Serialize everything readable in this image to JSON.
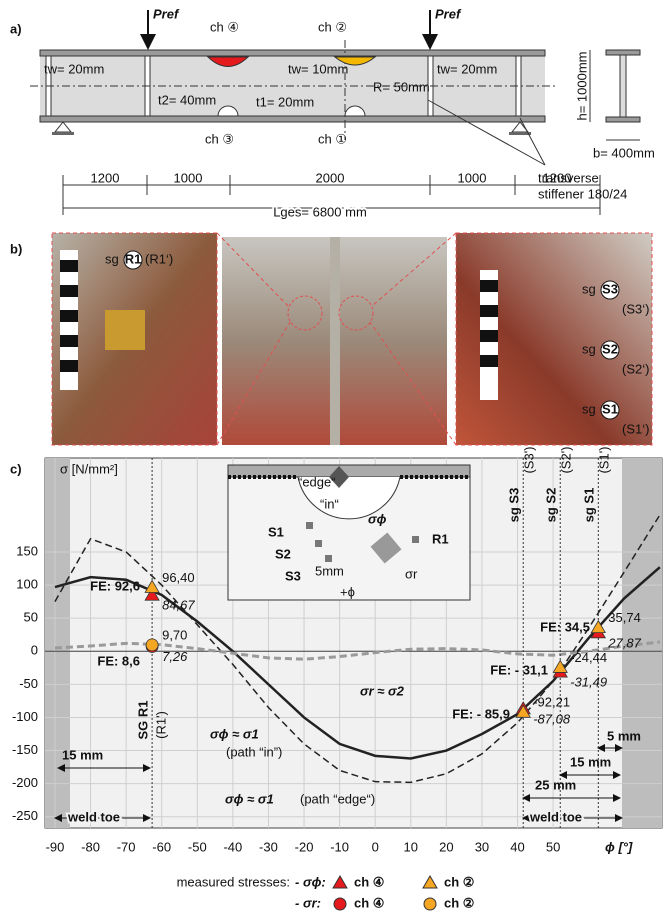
{
  "panel_a": {
    "label": "a)",
    "load_left": "Pref",
    "load_right": "Pref",
    "ch4": "ch ④",
    "ch2": "ch ②",
    "ch3": "ch ③",
    "ch1": "ch ①",
    "tw_left": "tw= 20mm",
    "tw_mid": "tw= 10mm",
    "tw_right": "tw= 20mm",
    "t2": "t2= 40mm",
    "t1": "t1= 20mm",
    "radius": "R= 50mm",
    "h": "h= 1000mm",
    "b": "b= 400mm",
    "spans": [
      "1200",
      "1000",
      "2000",
      "1000",
      "1200"
    ],
    "length": "Lges= 6800 mm",
    "stiffener": [
      "transverse",
      "stiffener 180/24"
    ]
  },
  "panel_b": {
    "label": "b)",
    "r1": {
      "sg": "sg",
      "id": "R1",
      "alt": "(R1‘)"
    },
    "s3": {
      "sg": "sg",
      "id": "S3",
      "alt": "(S3‘)"
    },
    "s2": {
      "sg": "sg",
      "id": "S2",
      "alt": "(S2‘)"
    },
    "s1": {
      "sg": "sg",
      "id": "S1",
      "alt": "(S1‘)"
    }
  },
  "chart_data": {
    "type": "line",
    "panel_label": "c)",
    "y_label": "σ [N/mm²]",
    "x_label": "ϕ [°]",
    "x": [
      -90,
      -80,
      -70,
      -60,
      -50,
      -40,
      -30,
      -20,
      -10,
      0,
      10,
      20,
      30,
      40,
      50,
      60,
      70,
      80
    ],
    "xlim": [
      -92.8,
      80.6
    ],
    "ylim": [
      -267,
      292
    ],
    "xticks": [
      -90,
      -80,
      -70,
      -60,
      -50,
      -40,
      -30,
      -20,
      -10,
      0,
      10,
      20,
      30,
      40,
      50
    ],
    "yticks": [
      -250,
      -200,
      -150,
      -100,
      -50,
      0,
      50,
      100,
      150
    ],
    "grid": true,
    "series": [
      {
        "color": "#222222",
        "dash": false,
        "width": 2.5,
        "values": [
          97,
          112,
          108,
          85,
          45,
          0,
          -50,
          -100,
          -140,
          -158,
          -162,
          -150,
          -125,
          -95,
          -45,
          20,
          80,
          127
        ]
      },
      {
        "color": "#222222",
        "dash": true,
        "width": 1.5,
        "values": [
          75,
          170,
          150,
          100,
          40,
          -20,
          -85,
          -140,
          -180,
          -197,
          -198,
          -185,
          -155,
          -108,
          -45,
          35,
          120,
          206
        ]
      },
      {
        "color": "#9a9a9a",
        "dash": true,
        "width": 3,
        "values": [
          5,
          8,
          12,
          10,
          4,
          -3,
          -10,
          -12,
          -8,
          -2,
          3,
          4,
          2,
          -4,
          -6,
          0,
          8,
          14
        ]
      }
    ],
    "measured": [
      {
        "name": "ch ④",
        "color": "#e41a1c",
        "marker": "triangle",
        "x": [
          -62.7,
          41.6,
          52,
          62.7
        ],
        "values": [
          84.67,
          -87.08,
          -31.49,
          27.87
        ],
        "value_labels": [
          "84,67",
          "-87,08",
          "-31,49",
          "27,87"
        ]
      },
      {
        "name": "ch ②",
        "color": "#f5a623",
        "marker": "triangle",
        "x": [
          -62.7,
          41.6,
          52,
          62.7
        ],
        "values": [
          96.4,
          -92.21,
          -24.44,
          35.74
        ],
        "value_labels": [
          "96,40",
          "-92,21",
          "-24,44",
          "35,74"
        ]
      },
      {
        "name": "ch ④",
        "color": "#e41a1c",
        "marker": "circle",
        "x": [
          -62.7
        ],
        "values": [
          7.26
        ],
        "value_labels": [
          "7,26"
        ]
      },
      {
        "name": "ch ②",
        "color": "#f5a623",
        "marker": "circle",
        "x": [
          -62.7
        ],
        "values": [
          9.7
        ],
        "value_labels": [
          "9,70"
        ]
      }
    ],
    "fe_labels": [
      "FE: 92,6",
      "FE: 8,6",
      "FE: 34,5",
      "FE: - 31,1",
      "FE: - 85,9"
    ],
    "sg_lines": {
      "x": [
        -62.7,
        41.6,
        52,
        62.7
      ],
      "labels": [
        "SG R1",
        "sg S3",
        "sg S2",
        "sg S1"
      ],
      "alt": [
        "(R1')",
        "(S3')",
        "(S2')",
        "(S1')"
      ]
    },
    "dims": [
      "15 mm",
      "25 mm",
      "15 mm",
      "5 mm"
    ],
    "weld_toe": [
      "weld toe",
      "weld toe"
    ],
    "curve_labels": [
      "σϕ ≈ σ1",
      "(path “in”)",
      "σϕ ≈ σ1",
      "(path “edge“)",
      "σr ≈ σ2"
    ],
    "inset": {
      "edge": "“edge“",
      "in": "“in“",
      "sphi": "σϕ",
      "sr": "σr",
      "s1": "S1",
      "s2": "S2",
      "s3": "S3",
      "r1": "R1",
      "d": "5mm",
      "phi": "+ϕ"
    },
    "legend": {
      "title": "measured stresses:",
      "rows": [
        "- σϕ:",
        "- σr:"
      ]
    }
  }
}
